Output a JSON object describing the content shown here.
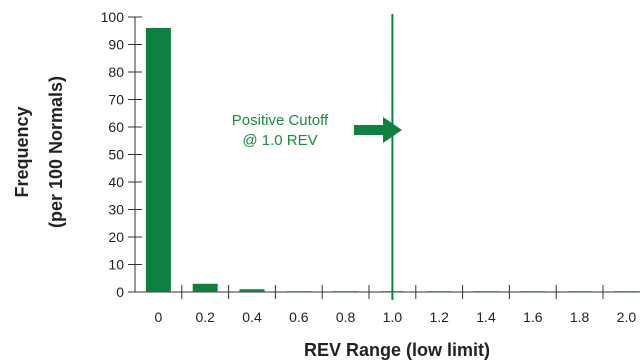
{
  "chart_data": {
    "type": "bar",
    "xlabel": "REV Range (low limit)",
    "ylabel_line1": "Frequency",
    "ylabel_line2": "(per 100 Normals)",
    "x_tick_labels": [
      "0",
      "0.2",
      "0.4",
      "0.6",
      "0.8",
      "1.0",
      "1.2",
      "1.4",
      "1.6",
      "1.8",
      "2.0"
    ],
    "y_tick_labels": [
      "0",
      "10",
      "20",
      "30",
      "40",
      "50",
      "60",
      "70",
      "80",
      "90",
      "100"
    ],
    "ylim": [
      0,
      100
    ],
    "categories": [
      "0",
      "0.2",
      "0.4",
      "0.6",
      "0.8",
      "1.0",
      "1.2",
      "1.4",
      "1.6",
      "1.8",
      "2.0"
    ],
    "values": [
      96,
      3,
      1,
      0.3,
      0.3,
      0.3,
      0.3,
      0.3,
      0.3,
      0.3,
      0.3
    ],
    "bar_color": "#0e8140",
    "cutoff": {
      "value": 1.0,
      "label_line1": "Positive Cutoff",
      "label_line2": "@ 1.0 REV",
      "color": "#0e8140",
      "text_color": "#1a8a3e"
    },
    "grid": false
  }
}
